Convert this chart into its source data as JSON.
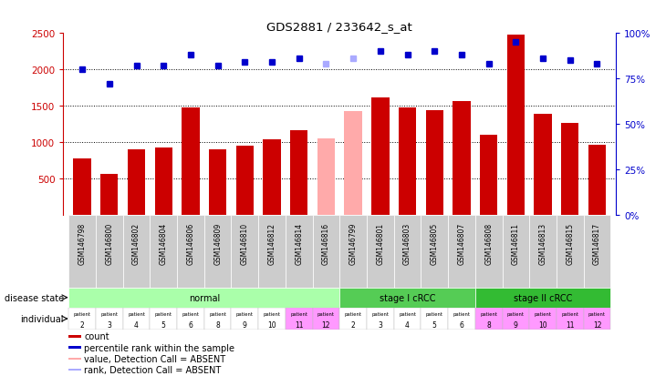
{
  "title": "GDS2881 / 233642_s_at",
  "gsm_labels": [
    "GSM146798",
    "GSM146800",
    "GSM146802",
    "GSM146804",
    "GSM146806",
    "GSM146809",
    "GSM146810",
    "GSM146812",
    "GSM146814",
    "GSM146816",
    "GSM146799",
    "GSM146801",
    "GSM146803",
    "GSM146805",
    "GSM146807",
    "GSM146808",
    "GSM146811",
    "GSM146813",
    "GSM146815",
    "GSM146817"
  ],
  "counts": [
    780,
    560,
    900,
    930,
    1480,
    900,
    950,
    1040,
    1160,
    1050,
    1420,
    1610,
    1480,
    1440,
    1560,
    1100,
    2480,
    1390,
    1260,
    960
  ],
  "absent_indices": [
    9,
    10
  ],
  "percentile_ranks": [
    80,
    72,
    82,
    82,
    88,
    82,
    84,
    84,
    86,
    83,
    86,
    90,
    88,
    90,
    88,
    83,
    95,
    86,
    85,
    83
  ],
  "bar_color_normal": "#cc0000",
  "bar_color_absent": "#ffaaaa",
  "dot_color_normal": "#0000cc",
  "dot_color_absent": "#aaaaff",
  "ylim_left": [
    0,
    2500
  ],
  "ylim_right": [
    0,
    100
  ],
  "yticks_left": [
    500,
    1000,
    1500,
    2000,
    2500
  ],
  "yticks_right": [
    0,
    25,
    50,
    75,
    100
  ],
  "disease_groups": [
    {
      "label": "normal",
      "start": 0,
      "end": 10,
      "color": "#aaffaa"
    },
    {
      "label": "stage I cRCC",
      "start": 10,
      "end": 15,
      "color": "#55cc55"
    },
    {
      "label": "stage II cRCC",
      "start": 15,
      "end": 20,
      "color": "#33bb33"
    }
  ],
  "patient_ids": [
    "2",
    "3",
    "4",
    "5",
    "6",
    "8",
    "9",
    "10",
    "11",
    "12",
    "2",
    "3",
    "4",
    "5",
    "6",
    "8",
    "9",
    "10",
    "11",
    "12"
  ],
  "patient_bg_normal": "#ffffff",
  "patient_bg_pink": "#ff99ff",
  "patient_pink_indices": [
    8,
    9,
    15,
    16,
    17,
    18,
    19
  ],
  "disease_state_label": "disease state",
  "individual_label": "individual",
  "legend_items": [
    {
      "label": "count",
      "color": "#cc0000"
    },
    {
      "label": "percentile rank within the sample",
      "color": "#0000cc"
    },
    {
      "label": "value, Detection Call = ABSENT",
      "color": "#ffaaaa"
    },
    {
      "label": "rank, Detection Call = ABSENT",
      "color": "#aaaaff"
    }
  ],
  "axis_color_left": "#cc0000",
  "axis_color_right": "#0000cc",
  "gsm_box_color": "#cccccc"
}
